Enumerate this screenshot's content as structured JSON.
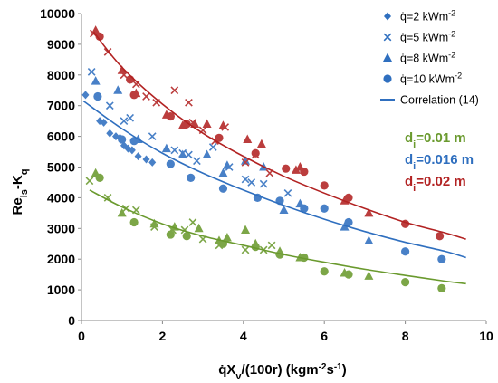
{
  "chart_data": {
    "type": "scatter",
    "xlabel_main": "q̇X",
    "xlabel_sub": "v",
    "xlabel_rest": "/(100r) (kgm",
    "xlabel_sup": "-2",
    "xlabel_mid": "s",
    "xlabel_sup2": "-1",
    "xlabel_end": ")",
    "ylabel_main": "Re",
    "ylabel_sub": "ls",
    "ylabel_mid": "-K",
    "ylabel_sub2": "q",
    "xlim": [
      0,
      10
    ],
    "ylim": [
      0,
      10000
    ],
    "xticks": [
      "0",
      "2",
      "4",
      "6",
      "8",
      "10"
    ],
    "yticks": [
      "0",
      "1000",
      "2000",
      "3000",
      "4000",
      "5000",
      "6000",
      "7000",
      "8000",
      "9000",
      "10000"
    ],
    "legend": [
      {
        "marker": "diamond",
        "label_main": "q̇=2 kWm",
        "label_sup": "-2"
      },
      {
        "marker": "cross",
        "label_main": "q̇=5 kWm",
        "label_sup": "-2"
      },
      {
        "marker": "triangle",
        "label_main": "q̇=8 kWm",
        "label_sup": "-2"
      },
      {
        "marker": "circle",
        "label_main": "q̇=10 kWm",
        "label_sup": "-2"
      },
      {
        "marker": "line",
        "label_main": "Correlation (14)",
        "label_sup": ""
      }
    ],
    "diameters": [
      {
        "label_main": "d",
        "label_sub": "i",
        "label_rest": "=0.01 m",
        "color": "#6a9a2e"
      },
      {
        "label_main": "d",
        "label_sub": "i",
        "label_rest": "=0.016 m",
        "color": "#2f6fbf"
      },
      {
        "label_main": "d",
        "label_sub": "i",
        "label_rest": "=0.02 m",
        "color": "#b22222"
      }
    ],
    "groups": [
      {
        "diameter": "0.01 m",
        "color": "#6a9a2e",
        "curve": {
          "x": [
            0.2,
            1,
            2,
            3,
            4,
            5,
            6,
            7,
            8,
            9,
            9.5
          ],
          "y": [
            4250,
            3700,
            3150,
            2750,
            2450,
            2150,
            1900,
            1670,
            1470,
            1280,
            1200
          ]
        },
        "points": {
          "triangle": [
            [
              0.35,
              4800
            ],
            [
              1,
              3500
            ],
            [
              1.8,
              3150
            ],
            [
              2.3,
              3050
            ],
            [
              2.9,
              3000
            ],
            [
              3.4,
              2600
            ],
            [
              3.6,
              2700
            ],
            [
              4.05,
              2950
            ],
            [
              4.3,
              2500
            ],
            [
              4.9,
              2250
            ],
            [
              5.4,
              2050
            ],
            [
              6.5,
              1550
            ],
            [
              7.1,
              1450
            ]
          ],
          "circle": [
            [
              0.45,
              4650
            ],
            [
              1.3,
              3200
            ],
            [
              2.2,
              2800
            ],
            [
              2.6,
              2750
            ],
            [
              3.5,
              2500
            ],
            [
              4.3,
              2400
            ],
            [
              4.9,
              2150
            ],
            [
              5.5,
              2050
            ],
            [
              6,
              1600
            ],
            [
              6.6,
              1500
            ],
            [
              8,
              1250
            ],
            [
              8.9,
              1050
            ]
          ],
          "cross": [
            [
              0.2,
              4550
            ],
            [
              0.65,
              4000
            ],
            [
              1.1,
              3650
            ],
            [
              1.35,
              3600
            ],
            [
              1.8,
              3050
            ],
            [
              2.25,
              2950
            ],
            [
              2.55,
              2950
            ],
            [
              2.75,
              3200
            ],
            [
              3,
              2650
            ],
            [
              3.4,
              2450
            ],
            [
              4.05,
              2300
            ],
            [
              4.5,
              2300
            ],
            [
              4.7,
              2450
            ]
          ]
        }
      },
      {
        "diameter": "0.016 m",
        "color": "#2f6fbf",
        "curve": {
          "x": [
            0.05,
            1,
            2,
            3,
            4,
            5,
            6,
            7,
            8,
            9,
            9.5
          ],
          "y": [
            7150,
            6250,
            5450,
            4800,
            4250,
            3750,
            3300,
            2900,
            2550,
            2250,
            2050
          ]
        },
        "points": {
          "diamond": [
            [
              0.1,
              7350
            ],
            [
              0.45,
              6500
            ],
            [
              0.55,
              6450
            ],
            [
              0.7,
              6100
            ],
            [
              0.85,
              6000
            ],
            [
              0.95,
              5950
            ],
            [
              1.05,
              5700
            ],
            [
              1.15,
              5600
            ],
            [
              1.25,
              5550
            ],
            [
              1.4,
              5350
            ],
            [
              1.6,
              5250
            ],
            [
              1.75,
              5150
            ]
          ],
          "cross": [
            [
              0.25,
              8100
            ],
            [
              0.7,
              7000
            ],
            [
              1.05,
              6500
            ],
            [
              1.2,
              6600
            ],
            [
              1.75,
              6000
            ],
            [
              2.3,
              5550
            ],
            [
              2.5,
              5450
            ],
            [
              2.65,
              5400
            ],
            [
              2.85,
              5200
            ],
            [
              3.25,
              5650
            ],
            [
              3.65,
              5000
            ],
            [
              4.05,
              4600
            ],
            [
              4.2,
              4500
            ],
            [
              4.5,
              4450
            ],
            [
              5.1,
              4150
            ]
          ],
          "triangle": [
            [
              0.35,
              7800
            ],
            [
              0.9,
              7500
            ],
            [
              1.4,
              5900
            ],
            [
              2.1,
              5600
            ],
            [
              2.5,
              5400
            ],
            [
              3.1,
              5400
            ],
            [
              3.5,
              4800
            ],
            [
              3.6,
              5050
            ],
            [
              4.05,
              5200
            ],
            [
              4.5,
              5000
            ],
            [
              5,
              3600
            ],
            [
              5.4,
              3800
            ],
            [
              6.5,
              3050
            ],
            [
              7.1,
              2600
            ]
          ],
          "circle": [
            [
              0.4,
              7300
            ],
            [
              1,
              5900
            ],
            [
              1.3,
              5850
            ],
            [
              2.2,
              5100
            ],
            [
              2.7,
              4650
            ],
            [
              3.5,
              4300
            ],
            [
              4.35,
              4000
            ],
            [
              4.9,
              3900
            ],
            [
              5.5,
              3650
            ],
            [
              6,
              3650
            ],
            [
              6.6,
              3200
            ],
            [
              8,
              2250
            ],
            [
              8.9,
              2000
            ]
          ]
        }
      },
      {
        "diameter": "0.02 m",
        "color": "#b22222",
        "curve": {
          "x": [
            0.3,
            1,
            2,
            3,
            4,
            5,
            6,
            7,
            8,
            9,
            9.5
          ],
          "y": [
            9400,
            8250,
            7050,
            6100,
            5350,
            4700,
            4150,
            3650,
            3200,
            2850,
            2650
          ]
        },
        "points": {
          "cross": [
            [
              0.3,
              9350
            ],
            [
              0.65,
              8750
            ],
            [
              1.05,
              8000
            ],
            [
              1.35,
              7700
            ],
            [
              1.6,
              7300
            ],
            [
              1.85,
              7100
            ],
            [
              2.3,
              7500
            ],
            [
              2.65,
              7100
            ],
            [
              2.75,
              6450
            ],
            [
              3,
              6200
            ],
            [
              3.3,
              5850
            ],
            [
              3.55,
              6300
            ],
            [
              4.05,
              5150
            ],
            [
              4.3,
              5400
            ],
            [
              4.65,
              4800
            ]
          ],
          "triangle": [
            [
              0.35,
              9450
            ],
            [
              1,
              8150
            ],
            [
              1.35,
              7400
            ],
            [
              2.1,
              6700
            ],
            [
              2.5,
              6350
            ],
            [
              2.8,
              6400
            ],
            [
              3.1,
              6400
            ],
            [
              3.5,
              6350
            ],
            [
              4.1,
              5900
            ],
            [
              4.45,
              5750
            ],
            [
              5.3,
              4900
            ],
            [
              5.4,
              5000
            ],
            [
              6.5,
              3900
            ],
            [
              7.1,
              3500
            ]
          ],
          "circle": [
            [
              0.45,
              9250
            ],
            [
              1.2,
              7850
            ],
            [
              1.3,
              7350
            ],
            [
              2.2,
              6650
            ],
            [
              2.6,
              6400
            ],
            [
              3.4,
              5950
            ],
            [
              4.3,
              5450
            ],
            [
              5.05,
              4950
            ],
            [
              5.5,
              4850
            ],
            [
              6,
              4400
            ],
            [
              6.6,
              4000
            ],
            [
              8,
              3150
            ],
            [
              8.85,
              2750
            ]
          ]
        }
      }
    ],
    "grid": false,
    "legend_position": "top-right"
  }
}
